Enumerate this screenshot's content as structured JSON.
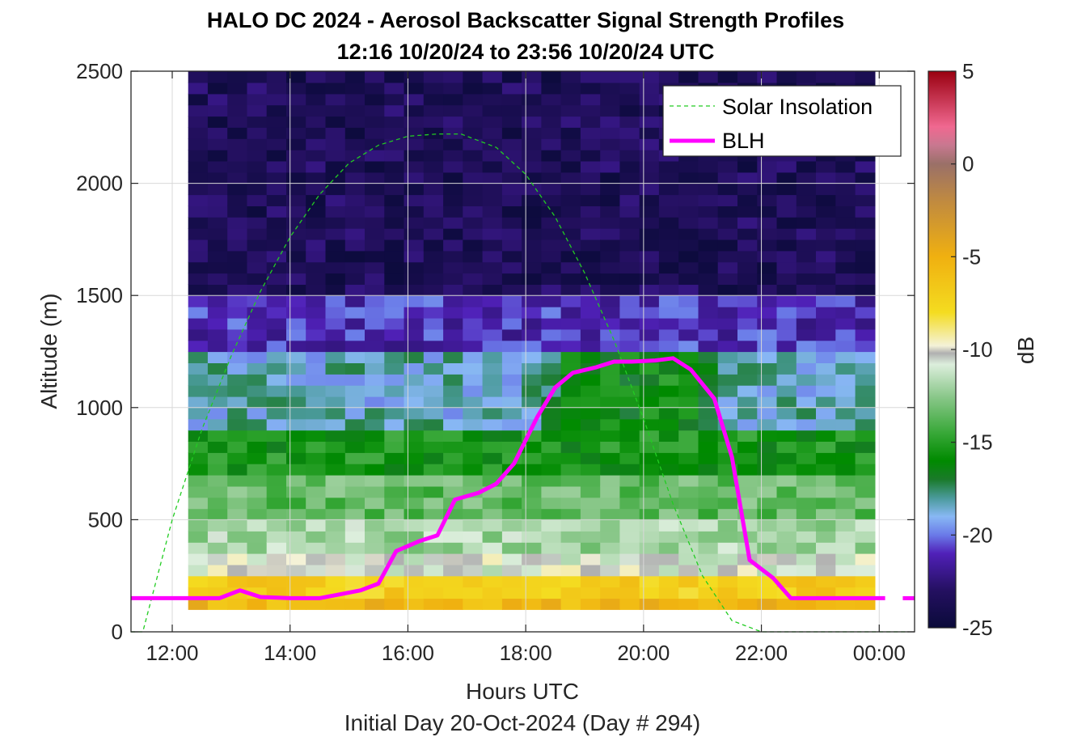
{
  "chart_data": {
    "type": "heatmap",
    "title": "HALO DC 2024 - Aerosol Backscatter Signal Strength Profiles",
    "subtitle": "12:16 10/20/24 to 23:56 10/20/24  UTC",
    "xlabel": "Hours UTC",
    "x_sublabel": "Initial Day 20-Oct-2024 (Day # 294)",
    "ylabel": "Altitude (m)",
    "x_unit": "hours UTC",
    "xlim": [
      11.3,
      24.6
    ],
    "ylim": [
      0,
      2500
    ],
    "x_ticks": [
      12,
      14,
      16,
      18,
      20,
      22,
      24
    ],
    "x_tick_labels": [
      "12:00",
      "14:00",
      "16:00",
      "18:00",
      "20:00",
      "22:00",
      "00:00"
    ],
    "y_ticks": [
      0,
      500,
      1000,
      1500,
      2000,
      2500
    ],
    "y_tick_labels": [
      "0",
      "500",
      "1000",
      "1500",
      "2000",
      "2500"
    ],
    "grid": true,
    "heatmap": {
      "x_start": 12.27,
      "x_end": 23.93,
      "x_step": 0.333,
      "y_start": 100,
      "y_step": 50,
      "unit": "dB",
      "layers_note": "column-wise dB profile keyed by altitude band",
      "bands": [
        {
          "y0": 100,
          "y1": 150,
          "db": -5.5
        },
        {
          "y0": 150,
          "y1": 250,
          "db": -7.0
        },
        {
          "y0": 250,
          "y1": 350,
          "db": -10.5
        },
        {
          "y0": 350,
          "y1": 500,
          "db": -12.0
        },
        {
          "y0": 500,
          "y1": 700,
          "db": -13.5
        },
        {
          "y0": 700,
          "y1": 900,
          "db": -15.5
        },
        {
          "y0": 900,
          "y1": 1250,
          "db": -18.5
        },
        {
          "y0": 1250,
          "y1": 1500,
          "db": -21.0
        },
        {
          "y0": 1500,
          "y1": 2500,
          "db": -23.5
        }
      ]
    },
    "series": [
      {
        "name": "Solar Insolation",
        "style": "dashed",
        "color": "#22cc22",
        "x": [
          11.3,
          11.5,
          12.0,
          12.5,
          13.0,
          13.5,
          14.0,
          14.5,
          15.0,
          15.5,
          16.0,
          16.5,
          16.9,
          17.5,
          18.0,
          18.5,
          19.0,
          19.5,
          20.0,
          20.5,
          21.0,
          21.5,
          22.0,
          22.3,
          24.5
        ],
        "y": [
          0,
          0,
          500,
          900,
          1230,
          1520,
          1760,
          1950,
          2090,
          2170,
          2210,
          2220,
          2220,
          2160,
          2040,
          1850,
          1600,
          1300,
          950,
          570,
          250,
          50,
          0,
          0,
          0
        ]
      },
      {
        "name": "BLH",
        "style": "solid",
        "color": "#ff00ff",
        "x": [
          11.3,
          12.8,
          13.15,
          13.5,
          14.0,
          14.5,
          14.8,
          15.2,
          15.5,
          15.8,
          16.2,
          16.5,
          16.8,
          17.2,
          17.5,
          17.8,
          18.2,
          18.5,
          18.8,
          19.2,
          19.5,
          19.8,
          20.2,
          20.5,
          20.8,
          21.2,
          21.5,
          21.8,
          22.2,
          22.5,
          23.0,
          23.5,
          24.1
        ],
        "y": [
          150,
          150,
          185,
          155,
          150,
          150,
          165,
          185,
          215,
          360,
          405,
          430,
          590,
          620,
          660,
          750,
          960,
          1090,
          1155,
          1180,
          1205,
          1205,
          1210,
          1220,
          1170,
          1040,
          780,
          320,
          240,
          150,
          150,
          150,
          150
        ]
      }
    ],
    "legend": {
      "placement": "top-right",
      "entries": [
        "Solar Insolation",
        "BLH"
      ]
    },
    "colorbar": {
      "label": "dB",
      "min": -25,
      "max": 5,
      "ticks": [
        5,
        0,
        -5,
        -10,
        -15,
        -20,
        -25
      ],
      "tick_labels": [
        "5",
        "0",
        "-5",
        "-10",
        "-15",
        "-20",
        "-25"
      ],
      "stops": [
        {
          "db": -25,
          "color": "#0a0a3a"
        },
        {
          "db": -23,
          "color": "#241060"
        },
        {
          "db": -21,
          "color": "#5020b8"
        },
        {
          "db": -20,
          "color": "#6a7ae8"
        },
        {
          "db": -19,
          "color": "#88b8f4"
        },
        {
          "db": -18,
          "color": "#4a9a9a"
        },
        {
          "db": -17,
          "color": "#1a7a2a"
        },
        {
          "db": -16,
          "color": "#008a00"
        },
        {
          "db": -14.5,
          "color": "#38a838"
        },
        {
          "db": -12.5,
          "color": "#8cc88c"
        },
        {
          "db": -10.8,
          "color": "#dceedc"
        },
        {
          "db": -10.2,
          "color": "#b0b0b0"
        },
        {
          "db": -9.8,
          "color": "#f4f2d8"
        },
        {
          "db": -8,
          "color": "#f4dc20"
        },
        {
          "db": -5,
          "color": "#f0b010"
        },
        {
          "db": -2,
          "color": "#c08a40"
        },
        {
          "db": 0,
          "color": "#9a7068"
        },
        {
          "db": 1,
          "color": "#c87890"
        },
        {
          "db": 2,
          "color": "#f06890"
        },
        {
          "db": 5,
          "color": "#9a0010"
        }
      ]
    }
  }
}
